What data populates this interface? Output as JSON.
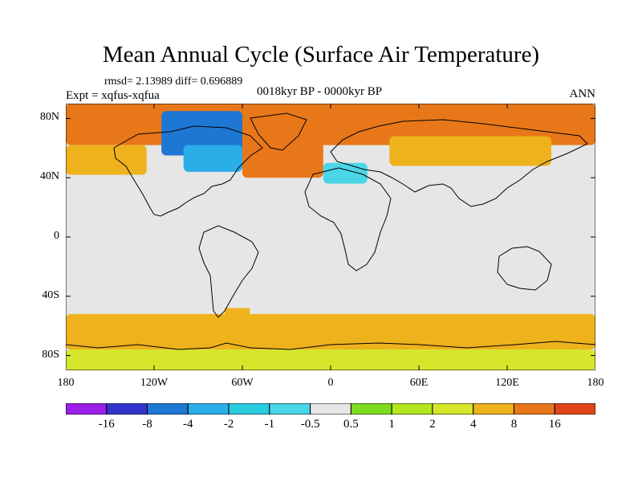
{
  "title": "Mean Annual Cycle (Surface Air Temperature)",
  "stats": "rmsd= 2.13989 diff= 0.696889",
  "experiment": "Expt = xqfus-xqfua",
  "period": "0018kyr BP - 0000kyr BP",
  "season": "ANN",
  "map": {
    "projection": "cylindrical equidistant",
    "lon_range": [
      -180,
      180
    ],
    "lat_range": [
      -90,
      90
    ],
    "lat_ticks": [
      {
        "value": 80,
        "label": "80N"
      },
      {
        "value": 40,
        "label": "40N"
      },
      {
        "value": 0,
        "label": "0"
      },
      {
        "value": -40,
        "label": "40S"
      },
      {
        "value": -80,
        "label": "80S"
      }
    ],
    "lon_ticks": [
      {
        "value": -180,
        "label": "180"
      },
      {
        "value": -120,
        "label": "120W"
      },
      {
        "value": -60,
        "label": "60W"
      },
      {
        "value": 0,
        "label": "0"
      },
      {
        "value": 60,
        "label": "60E"
      },
      {
        "value": 120,
        "label": "120E"
      },
      {
        "value": 180,
        "label": "180"
      }
    ],
    "fill_regions": [
      {
        "name": "arctic-warming",
        "level": 8,
        "color": "#e8771a",
        "lon": [
          -180,
          180
        ],
        "lat": [
          62,
          90
        ]
      },
      {
        "name": "north-atlantic-warming",
        "level": 8,
        "color": "#e8771a",
        "lon": [
          -60,
          -5
        ],
        "lat": [
          40,
          72
        ]
      },
      {
        "name": "north-pacific-warming",
        "level": 4,
        "color": "#eeb21c",
        "lon": [
          -180,
          -125
        ],
        "lat": [
          42,
          62
        ]
      },
      {
        "name": "eurasia-warming",
        "level": 4,
        "color": "#eeb21c",
        "lon": [
          40,
          150
        ],
        "lat": [
          48,
          68
        ]
      },
      {
        "name": "canada-cooling",
        "level": -4,
        "color": "#1f77d4",
        "lon": [
          -115,
          -60
        ],
        "lat": [
          55,
          85
        ]
      },
      {
        "name": "hudson-cooling",
        "level": -2,
        "color": "#2aaee8",
        "lon": [
          -100,
          -60
        ],
        "lat": [
          44,
          62
        ]
      },
      {
        "name": "europe-cooling",
        "level": -1,
        "color": "#4ad6e6",
        "lon": [
          -5,
          25
        ],
        "lat": [
          36,
          50
        ]
      },
      {
        "name": "andes-cooling",
        "level": -1,
        "color": "#4ad6e6",
        "lon": [
          -80,
          -40
        ],
        "lat": [
          -40,
          -10
        ]
      },
      {
        "name": "africa-cooling",
        "level": -1,
        "color": "#4ad6e6",
        "lon": [
          10,
          35
        ],
        "lat": [
          -30,
          -5
        ]
      },
      {
        "name": "australia-cooling",
        "level": -1,
        "color": "#4ad6e6",
        "lon": [
          115,
          150
        ],
        "lat": [
          -35,
          -15
        ]
      },
      {
        "name": "south-america-warming",
        "level": 4,
        "color": "#eeb21c",
        "lon": [
          -72,
          -55
        ],
        "lat": [
          -56,
          -42
        ]
      },
      {
        "name": "southern-ocean-warming",
        "level": 4,
        "color": "#eeb21c",
        "lon": [
          -180,
          180
        ],
        "lat": [
          -76,
          -52
        ]
      },
      {
        "name": "antarctic-mixed",
        "level": 2,
        "color": "#d6e62a",
        "lon": [
          -180,
          180
        ],
        "lat": [
          -90,
          -76
        ]
      },
      {
        "name": "tropical-neutral",
        "level": 0,
        "color": "#e6e6e6",
        "lon": [
          -180,
          180
        ],
        "lat": [
          -48,
          30
        ]
      }
    ]
  },
  "colorbar": {
    "colors": [
      "#9b1fe8",
      "#3333cc",
      "#1f77d4",
      "#2aaee8",
      "#2acce0",
      "#4ad6e6",
      "#e6e6e6",
      "#7ddc1f",
      "#b4e61e",
      "#d6e62a",
      "#eeb21c",
      "#e8771a",
      "#e0451a"
    ],
    "labels": [
      "-16",
      "-8",
      "-4",
      "-2",
      "-1",
      "-0.5",
      "0.5",
      "1",
      "2",
      "4",
      "8",
      "16"
    ]
  }
}
